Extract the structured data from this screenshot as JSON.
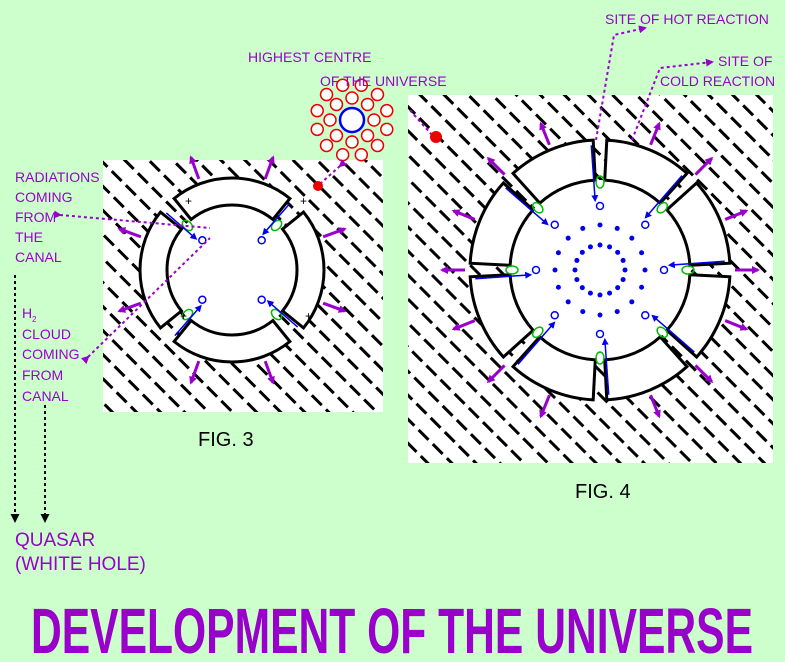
{
  "labels": {
    "hot_reaction": "SITE OF HOT REACTION",
    "cold_reaction": [
      "SITE OF",
      "COLD REACTION"
    ],
    "highest_centre": [
      "HIGHEST CENTRE",
      "OF THE UNIVERSE"
    ],
    "radiations": [
      "RADIATIONS",
      "COMING",
      "FROM",
      "THE",
      "CANAL"
    ],
    "h2_cloud": {
      "symbol": "H",
      "subscript": "2",
      "lines": [
        "CLOUD",
        "COMING",
        "FROM",
        "CANAL"
      ]
    },
    "quasar": [
      "QUASAR",
      "(WHITE HOLE)"
    ]
  },
  "figures": [
    "FIG. 3",
    "FIG. 4"
  ],
  "title": "DEVELOPMENT OF THE UNIVERSE"
}
